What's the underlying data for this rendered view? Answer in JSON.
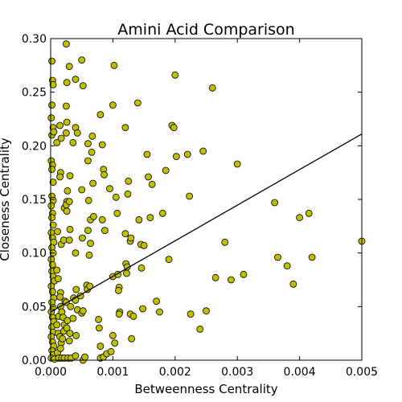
{
  "colors": {
    "marker_fill": "#bfbf00",
    "marker_edge": "#000000",
    "line": "#000000",
    "background": "#ffffff"
  },
  "chart_data": {
    "type": "scatter",
    "title": "Amini Acid Comparison",
    "xlabel": "Betweenness Centrality",
    "ylabel": "Closeness Centrality",
    "xlim": [
      0,
      0.005
    ],
    "ylim": [
      0,
      0.3
    ],
    "grid": false,
    "legend": "none",
    "x_ticks": [
      "0.000",
      "0.001",
      "0.002",
      "0.003",
      "0.004",
      "0.005"
    ],
    "y_ticks": [
      "0.00",
      "0.05",
      "0.10",
      "0.15",
      "0.20",
      "0.25",
      "0.30"
    ],
    "trendline": {
      "x": [
        0,
        0.005
      ],
      "y": [
        0.045,
        0.211
      ]
    },
    "points": [
      [
        2e-05,
        0.279
      ],
      [
        3e-05,
        0.261
      ],
      [
        4e-05,
        0.257
      ],
      [
        2e-05,
        0.238
      ],
      [
        1e-05,
        0.226
      ],
      [
        4e-05,
        0.217
      ],
      [
        2e-05,
        0.21
      ],
      [
        5e-05,
        0.213
      ],
      [
        1e-05,
        0.186
      ],
      [
        3e-05,
        0.182
      ],
      [
        2e-05,
        0.178
      ],
      [
        4e-05,
        0.166
      ],
      [
        2e-05,
        0.153
      ],
      [
        4e-05,
        0.149
      ],
      [
        1e-05,
        0.144
      ],
      [
        3e-05,
        0.137
      ],
      [
        2e-05,
        0.133
      ],
      [
        4e-05,
        0.126
      ],
      [
        1e-05,
        0.119
      ],
      [
        3e-05,
        0.114
      ],
      [
        5e-05,
        0.11
      ],
      [
        2e-05,
        0.105
      ],
      [
        4e-05,
        0.1
      ],
      [
        1e-05,
        0.094
      ],
      [
        3e-05,
        0.089
      ],
      [
        2e-05,
        0.083
      ],
      [
        4e-05,
        0.078
      ],
      [
        6e-05,
        0.074
      ],
      [
        1e-05,
        0.069
      ],
      [
        3e-05,
        0.064
      ],
      [
        5e-05,
        0.058
      ],
      [
        2e-05,
        0.054
      ],
      [
        4e-05,
        0.049
      ],
      [
        1e-05,
        0.045
      ],
      [
        3e-05,
        0.04
      ],
      [
        5e-05,
        0.036
      ],
      [
        2e-05,
        0.031
      ],
      [
        4e-05,
        0.026
      ],
      [
        1e-05,
        0.022
      ],
      [
        3e-05,
        0.017
      ],
      [
        5e-05,
        0.013
      ],
      [
        2e-05,
        0.009
      ],
      [
        4e-05,
        0.005
      ],
      [
        1e-05,
        0.002
      ],
      [
        6e-05,
        0.001
      ],
      [
        0.0001,
        0.203
      ],
      [
        0.00011,
        0.12
      ],
      [
        0.0001,
        0.084
      ],
      [
        0.00012,
        0.076
      ],
      [
        0.00013,
        0.041
      ],
      [
        0.0001,
        0.033
      ],
      [
        0.00012,
        0.025
      ],
      [
        0.00011,
        0.007
      ],
      [
        0.00013,
        0.002
      ],
      [
        0.00015,
        0.219
      ],
      [
        0.00017,
        0.207
      ],
      [
        0.00016,
        0.175
      ],
      [
        0.00015,
        0.171
      ],
      [
        0.00017,
        0.108
      ],
      [
        0.00016,
        0.063
      ],
      [
        0.00015,
        0.059
      ],
      [
        0.00016,
        0.05
      ],
      [
        0.00018,
        0.045
      ],
      [
        0.00015,
        0.022
      ],
      [
        0.00017,
        0.016
      ],
      [
        0.00016,
        0.011
      ],
      [
        0.00018,
        0.002
      ],
      [
        0.00022,
        0.142
      ],
      [
        0.00021,
        0.112
      ],
      [
        0.00023,
        0.055
      ],
      [
        0.0002,
        0.04
      ],
      [
        0.00022,
        0.033
      ],
      [
        0.00021,
        0.027
      ],
      [
        0.00019,
        0.02
      ],
      [
        0.00022,
        0.002
      ],
      [
        0.00025,
        0.295
      ],
      [
        0.00026,
        0.259
      ],
      [
        0.00025,
        0.237
      ],
      [
        0.00026,
        0.222
      ],
      [
        0.00025,
        0.212
      ],
      [
        0.00027,
        0.158
      ],
      [
        0.00026,
        0.148
      ],
      [
        0.00025,
        0.145
      ],
      [
        0.00026,
        0.139
      ],
      [
        0.00025,
        0.054
      ],
      [
        0.00027,
        0.037
      ],
      [
        0.00026,
        0.03
      ],
      [
        0.00028,
        0.002
      ],
      [
        0.0003,
        0.274
      ],
      [
        0.00031,
        0.172
      ],
      [
        0.0003,
        0.148
      ],
      [
        0.00031,
        0.122
      ],
      [
        0.0003,
        0.112
      ],
      [
        0.00032,
        0.05
      ],
      [
        0.00031,
        0.025
      ],
      [
        0.0003,
        0.018
      ],
      [
        0.00033,
        0.002
      ],
      [
        0.00036,
        0.203
      ],
      [
        0.00037,
        0.058
      ],
      [
        0.00036,
        0.039
      ],
      [
        0.0004,
        0.262
      ],
      [
        0.0004,
        0.217
      ],
      [
        0.00043,
        0.212
      ],
      [
        0.0004,
        0.1
      ],
      [
        0.00041,
        0.066
      ],
      [
        0.0004,
        0.056
      ],
      [
        0.00043,
        0.047
      ],
      [
        0.00041,
        0.023
      ],
      [
        0.0004,
        0.004
      ],
      [
        0.0005,
        0.28
      ],
      [
        0.00052,
        0.256
      ],
      [
        0.0005,
        0.159
      ],
      [
        0.00051,
        0.114
      ],
      [
        0.00048,
        0.06
      ],
      [
        0.0005,
        0.044
      ],
      [
        0.00052,
        0.046
      ],
      [
        0.00052,
        0.0
      ],
      [
        0.00055,
        0.003
      ],
      [
        0.00058,
        0.07
      ],
      [
        0.00059,
        0.066
      ],
      [
        0.0006,
        0.202
      ],
      [
        0.0006,
        0.186
      ],
      [
        0.00061,
        0.149
      ],
      [
        0.0006,
        0.121
      ],
      [
        0.00062,
        0.098
      ],
      [
        0.00064,
        0.109
      ],
      [
        0.00063,
        0.069
      ],
      [
        0.00064,
        0.131
      ],
      [
        0.00067,
        0.209
      ],
      [
        0.00066,
        0.194
      ],
      [
        0.00068,
        0.165
      ],
      [
        0.00069,
        0.134
      ],
      [
        0.00077,
        0.038
      ],
      [
        0.00078,
        0.03
      ],
      [
        0.0008,
        0.229
      ],
      [
        0.0008,
        0.013
      ],
      [
        0.0008,
        0.002
      ],
      [
        0.00083,
        0.201
      ],
      [
        0.00085,
        0.178
      ],
      [
        0.00086,
        0.173
      ],
      [
        0.00083,
        0.131
      ],
      [
        0.00087,
        0.121
      ],
      [
        0.00085,
        0.003
      ],
      [
        0.0009,
        0.006
      ],
      [
        0.00095,
        0.16
      ],
      [
        0.00097,
        0.008
      ],
      [
        0.001,
        0.238
      ],
      [
        0.00102,
        0.275
      ],
      [
        0.001,
        0.078
      ],
      [
        0.001,
        0.023
      ],
      [
        0.00103,
        0.016
      ],
      [
        0.00105,
        0.152
      ],
      [
        0.00107,
        0.137
      ],
      [
        0.00108,
        0.08
      ],
      [
        0.0011,
        0.068
      ],
      [
        0.00109,
        0.065
      ],
      [
        0.00111,
        0.045
      ],
      [
        0.0011,
        0.043
      ],
      [
        0.0012,
        0.217
      ],
      [
        0.0012,
        0.118
      ],
      [
        0.00121,
        0.09
      ],
      [
        0.00123,
        0.087
      ],
      [
        0.00122,
        0.081
      ],
      [
        0.00125,
        0.167
      ],
      [
        0.00124,
        0.155
      ],
      [
        0.00128,
        0.111
      ],
      [
        0.00129,
        0.114
      ],
      [
        0.0013,
        0.02
      ],
      [
        0.00128,
        0.043
      ],
      [
        0.00133,
        0.041
      ],
      [
        0.0014,
        0.24
      ],
      [
        0.00142,
        0.131
      ],
      [
        0.00145,
        0.108
      ],
      [
        0.00146,
        0.086
      ],
      [
        0.00148,
        0.048
      ],
      [
        0.0015,
        0.107
      ],
      [
        0.00155,
        0.192
      ],
      [
        0.00157,
        0.171
      ],
      [
        0.0016,
        0.133
      ],
      [
        0.00163,
        0.164
      ],
      [
        0.0017,
        0.055
      ],
      [
        0.00175,
        0.045
      ],
      [
        0.0018,
        0.137
      ],
      [
        0.00185,
        0.177
      ],
      [
        0.0019,
        0.094
      ],
      [
        0.00195,
        0.219
      ],
      [
        0.00198,
        0.217
      ],
      [
        0.002,
        0.266
      ],
      [
        0.00202,
        0.19
      ],
      [
        0.0022,
        0.192
      ],
      [
        0.00223,
        0.153
      ],
      [
        0.00225,
        0.043
      ],
      [
        0.0024,
        0.029
      ],
      [
        0.00245,
        0.195
      ],
      [
        0.0025,
        0.046
      ],
      [
        0.0026,
        0.254
      ],
      [
        0.00265,
        0.077
      ],
      [
        0.0028,
        0.11
      ],
      [
        0.0029,
        0.075
      ],
      [
        0.003,
        0.183
      ],
      [
        0.0031,
        0.08
      ],
      [
        0.0036,
        0.147
      ],
      [
        0.00365,
        0.096
      ],
      [
        0.0038,
        0.088
      ],
      [
        0.0039,
        0.071
      ],
      [
        0.004,
        0.133
      ],
      [
        0.00415,
        0.137
      ],
      [
        0.0042,
        0.096
      ],
      [
        0.005,
        0.111
      ]
    ]
  }
}
